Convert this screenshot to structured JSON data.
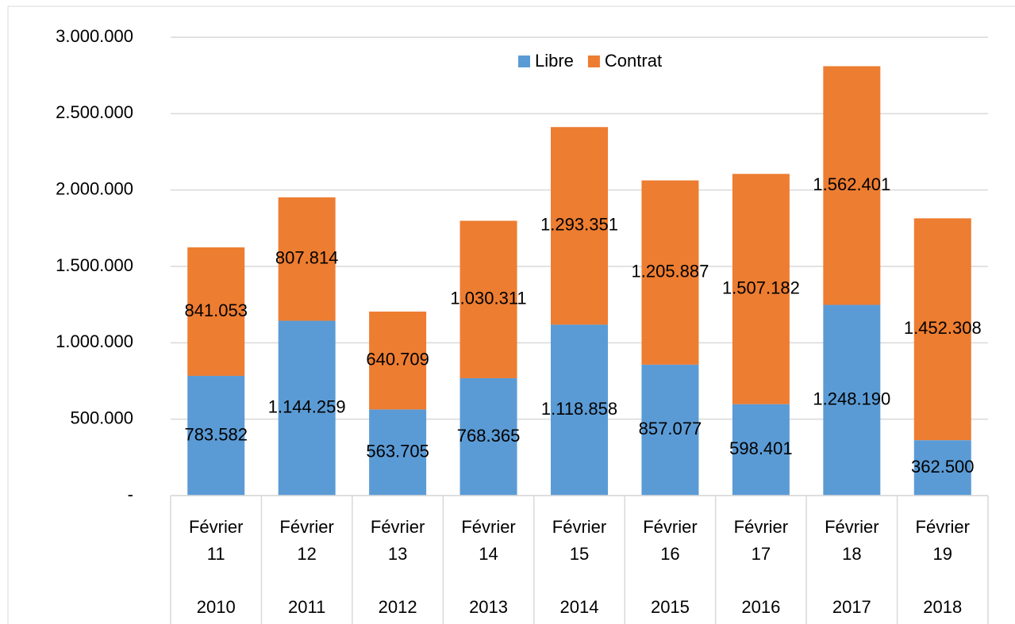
{
  "chart_data": {
    "type": "stacked_bar",
    "categories": [
      "Février 11",
      "Février 12",
      "Février 13",
      "Février 14",
      "Février 15",
      "Février 16",
      "Février 17",
      "Février 18",
      "Février 19"
    ],
    "years": [
      "2010",
      "2011",
      "2012",
      "2013",
      "2014",
      "2015",
      "2016",
      "2017",
      "2018"
    ],
    "series": [
      {
        "name": "Libre",
        "color": "#5b9bd5",
        "values": [
          783582,
          1144259,
          563705,
          768365,
          1118858,
          857077,
          598401,
          1248190,
          362500
        ],
        "value_labels": [
          "783.582",
          "1.144.259",
          "563.705",
          "768.365",
          "1.118.858",
          "857.077",
          "598.401",
          "1.248.190",
          "362.500"
        ]
      },
      {
        "name": "Contrat",
        "color": "#ed7d31",
        "values": [
          841053,
          807814,
          640709,
          1030311,
          1293351,
          1205887,
          1507182,
          1562401,
          1452308
        ],
        "value_labels": [
          "841.053",
          "807.814",
          "640.709",
          "1.030.311",
          "1.293.351",
          "1.205.887",
          "1.507.182",
          "1.562.401",
          "1.452.308"
        ]
      }
    ],
    "ylim": [
      0,
      3000000
    ],
    "yticks": [
      {
        "value": 0,
        "label": "-"
      },
      {
        "value": 500000,
        "label": "500.000"
      },
      {
        "value": 1000000,
        "label": "1.000.000"
      },
      {
        "value": 1500000,
        "label": "1.500.000"
      },
      {
        "value": 2000000,
        "label": "2.000.000"
      },
      {
        "value": 2500000,
        "label": "2.500.000"
      },
      {
        "value": 3000000,
        "label": "3.000.000"
      }
    ],
    "grid": true,
    "legend": "top"
  }
}
